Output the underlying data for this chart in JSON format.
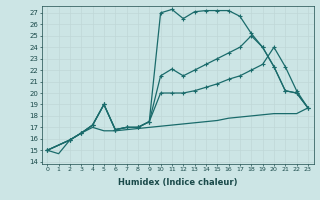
{
  "background_color": "#cce5e5",
  "grid_color": "#aacccc",
  "line_color": "#1a6b6b",
  "xlabel": "Humidex (Indice chaleur)",
  "xlim": [
    -0.5,
    23.5
  ],
  "ylim": [
    13.8,
    27.6
  ],
  "xticks": [
    0,
    1,
    2,
    3,
    4,
    5,
    6,
    7,
    8,
    9,
    10,
    11,
    12,
    13,
    14,
    15,
    16,
    17,
    18,
    19,
    20,
    21,
    22,
    23
  ],
  "yticks": [
    14,
    15,
    16,
    17,
    18,
    19,
    20,
    21,
    22,
    23,
    24,
    25,
    26,
    27
  ],
  "series": [
    {
      "x": [
        0,
        1,
        2,
        3,
        4,
        5,
        6,
        7,
        8,
        9,
        10,
        11,
        12,
        13,
        14,
        15,
        16,
        17,
        18,
        19,
        20,
        21,
        22,
        23
      ],
      "y": [
        15.0,
        14.7,
        15.9,
        16.5,
        17.0,
        16.7,
        16.7,
        16.8,
        16.9,
        17.0,
        17.1,
        17.2,
        17.3,
        17.4,
        17.5,
        17.6,
        17.8,
        17.9,
        18.0,
        18.1,
        18.2,
        18.2,
        18.2,
        18.7
      ],
      "marker": false,
      "linewidth": 0.9
    },
    {
      "x": [
        0,
        2,
        3,
        4,
        5,
        6,
        7,
        8,
        9,
        10,
        11,
        12,
        13,
        14,
        15,
        16,
        17,
        18,
        19,
        20,
        21,
        22,
        23
      ],
      "y": [
        15.0,
        15.9,
        16.5,
        17.2,
        19.0,
        16.8,
        17.0,
        17.0,
        17.5,
        27.0,
        27.3,
        26.5,
        27.1,
        27.2,
        27.2,
        27.2,
        26.7,
        25.2,
        24.0,
        22.3,
        20.2,
        20.0,
        18.7
      ],
      "marker": true,
      "markersize": 2.0,
      "linewidth": 0.9
    },
    {
      "x": [
        0,
        2,
        3,
        4,
        5,
        6,
        7,
        8,
        9,
        10,
        11,
        12,
        13,
        14,
        15,
        16,
        17,
        18,
        19,
        20,
        21,
        22,
        23
      ],
      "y": [
        15.0,
        15.9,
        16.5,
        17.2,
        19.0,
        16.8,
        17.0,
        17.0,
        17.5,
        21.5,
        22.1,
        21.5,
        22.0,
        22.5,
        23.0,
        23.5,
        24.0,
        25.0,
        24.0,
        22.3,
        20.2,
        20.0,
        18.7
      ],
      "marker": true,
      "markersize": 2.0,
      "linewidth": 0.9
    },
    {
      "x": [
        0,
        2,
        3,
        4,
        5,
        6,
        7,
        8,
        9,
        10,
        11,
        12,
        13,
        14,
        15,
        16,
        17,
        18,
        19,
        20,
        21,
        22,
        23
      ],
      "y": [
        15.0,
        15.9,
        16.5,
        17.2,
        19.0,
        16.8,
        17.0,
        17.0,
        17.5,
        20.0,
        20.0,
        20.0,
        20.2,
        20.5,
        20.8,
        21.2,
        21.5,
        22.0,
        22.5,
        24.0,
        22.3,
        20.2,
        18.7
      ],
      "marker": true,
      "markersize": 2.0,
      "linewidth": 0.9
    }
  ]
}
